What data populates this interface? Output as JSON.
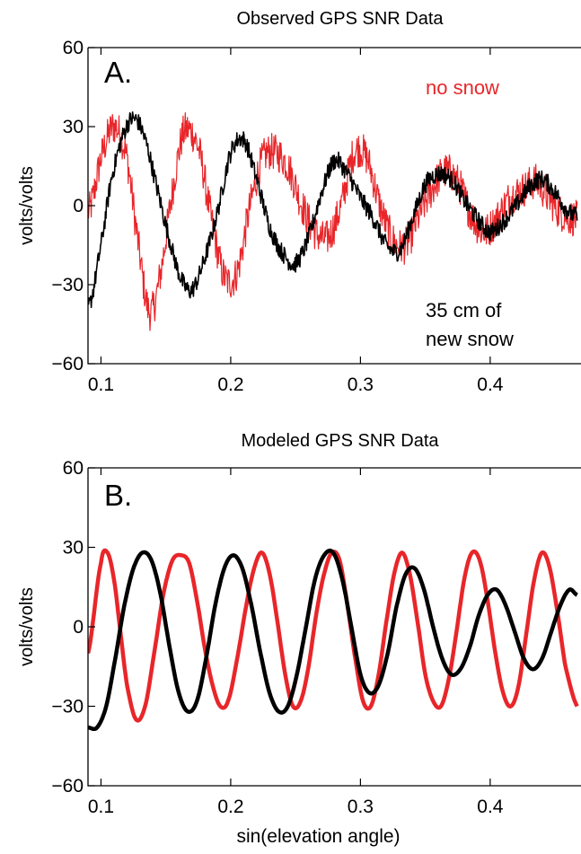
{
  "chart_data": [
    {
      "type": "line",
      "title": "Observed GPS SNR Data",
      "panel_label": "A.",
      "xlabel": "",
      "ylabel": "volts/volts",
      "xlim": [
        0.09,
        0.47
      ],
      "ylim": [
        -60,
        60
      ],
      "xticks": [
        0.1,
        0.2,
        0.3,
        0.4
      ],
      "xtick_labels": [
        "0.1",
        "0.2",
        "0.3",
        "0.4"
      ],
      "yticks": [
        60,
        30,
        0,
        -30,
        -60
      ],
      "ytick_labels": [
        "60",
        "30",
        "0",
        "−30",
        "−60"
      ],
      "annotations": [
        {
          "text": "no snow",
          "color": "#e8262a"
        },
        {
          "text": "35 cm of",
          "color": "#000000"
        },
        {
          "text": "new snow",
          "color": "#000000"
        }
      ],
      "series": [
        {
          "color": "#e8262a",
          "x": [
            0.091,
            0.1,
            0.11,
            0.12,
            0.128,
            0.137,
            0.145,
            0.155,
            0.164,
            0.175,
            0.185,
            0.195,
            0.205,
            0.215,
            0.225,
            0.235,
            0.245,
            0.255,
            0.265,
            0.275,
            0.285,
            0.295,
            0.305,
            0.315,
            0.325,
            0.335,
            0.345,
            0.355,
            0.365,
            0.375,
            0.385,
            0.395,
            0.405,
            0.415,
            0.425,
            0.435,
            0.445,
            0.455,
            0.467
          ],
          "y": [
            -2,
            18,
            30,
            18,
            -12,
            -40,
            -28,
            5,
            28,
            22,
            -5,
            -27,
            -25,
            0,
            18,
            20,
            14,
            0,
            -10,
            -12,
            0,
            20,
            18,
            0,
            -13,
            -15,
            -4,
            6,
            13,
            9,
            -3,
            -10,
            -5,
            3,
            6,
            9,
            3,
            -3,
            -5
          ],
          "noise": 7
        },
        {
          "color": "#000000",
          "x": [
            0.091,
            0.1,
            0.108,
            0.118,
            0.126,
            0.134,
            0.144,
            0.154,
            0.162,
            0.17,
            0.18,
            0.19,
            0.2,
            0.21,
            0.22,
            0.23,
            0.24,
            0.25,
            0.26,
            0.27,
            0.28,
            0.29,
            0.3,
            0.31,
            0.32,
            0.33,
            0.34,
            0.35,
            0.36,
            0.37,
            0.38,
            0.39,
            0.4,
            0.41,
            0.42,
            0.43,
            0.44,
            0.45,
            0.46,
            0.467
          ],
          "y": [
            -38,
            -15,
            10,
            28,
            33,
            25,
            5,
            -15,
            -28,
            -32,
            -20,
            -2,
            20,
            25,
            10,
            -8,
            -18,
            -22,
            -12,
            5,
            17,
            12,
            3,
            -5,
            -15,
            -17,
            -5,
            8,
            12,
            10,
            2,
            -5,
            -10,
            -6,
            0,
            7,
            10,
            5,
            -2,
            -4
          ],
          "noise": 3.5
        }
      ]
    },
    {
      "type": "line",
      "title": "Modeled GPS SNR Data",
      "panel_label": "B.",
      "xlabel": "sin(elevation angle)",
      "ylabel": "volts/volts",
      "xlim": [
        0.09,
        0.47
      ],
      "ylim": [
        -60,
        60
      ],
      "xticks": [
        0.1,
        0.2,
        0.3,
        0.4
      ],
      "xtick_labels": [
        "0.1",
        "0.2",
        "0.3",
        "0.4"
      ],
      "yticks": [
        60,
        30,
        0,
        -30,
        -60
      ],
      "ytick_labels": [
        "60",
        "30",
        "0",
        "−30",
        "−60"
      ],
      "series": [
        {
          "color": "#e8262a",
          "x": [
            0.09,
            0.1,
            0.105,
            0.11,
            0.115,
            0.12,
            0.127,
            0.134,
            0.141,
            0.148,
            0.155,
            0.162,
            0.168,
            0.174,
            0.18,
            0.186,
            0.192,
            0.198,
            0.205,
            0.212,
            0.218,
            0.224,
            0.23,
            0.236,
            0.242,
            0.248,
            0.254,
            0.26,
            0.266,
            0.272,
            0.278,
            0.284,
            0.29,
            0.296,
            0.302,
            0.308,
            0.314,
            0.32,
            0.326,
            0.332,
            0.338,
            0.344,
            0.35,
            0.356,
            0.362,
            0.368,
            0.374,
            0.38,
            0.386,
            0.392,
            0.398,
            0.404,
            0.41,
            0.416,
            0.422,
            0.428,
            0.434,
            0.44,
            0.446,
            0.452,
            0.458,
            0.467
          ],
          "y": [
            -10,
            24,
            28,
            18,
            -2,
            -22,
            -35,
            -30,
            -10,
            12,
            25,
            27,
            24,
            10,
            -8,
            -22,
            -30,
            -28,
            -12,
            8,
            22,
            28,
            20,
            2,
            -18,
            -30,
            -28,
            -15,
            5,
            20,
            28,
            25,
            8,
            -12,
            -28,
            -30,
            -18,
            2,
            20,
            28,
            20,
            2,
            -18,
            -28,
            -30,
            -20,
            -2,
            18,
            28,
            25,
            10,
            -10,
            -25,
            -30,
            -22,
            -2,
            18,
            28,
            22,
            5,
            -15,
            -30
          ],
          "noise": 0
        },
        {
          "color": "#000000",
          "x": [
            0.09,
            0.097,
            0.104,
            0.111,
            0.118,
            0.125,
            0.132,
            0.139,
            0.146,
            0.153,
            0.16,
            0.167,
            0.174,
            0.181,
            0.188,
            0.195,
            0.202,
            0.209,
            0.216,
            0.223,
            0.23,
            0.237,
            0.244,
            0.251,
            0.258,
            0.265,
            0.272,
            0.279,
            0.286,
            0.293,
            0.3,
            0.307,
            0.314,
            0.321,
            0.328,
            0.335,
            0.342,
            0.349,
            0.356,
            0.363,
            0.37,
            0.377,
            0.384,
            0.391,
            0.398,
            0.405,
            0.412,
            0.419,
            0.426,
            0.433,
            0.44,
            0.447,
            0.454,
            0.461,
            0.467
          ],
          "y": [
            -38,
            -38,
            -30,
            -12,
            8,
            22,
            28,
            25,
            12,
            -8,
            -25,
            -32,
            -28,
            -12,
            8,
            22,
            27,
            22,
            8,
            -10,
            -25,
            -32,
            -30,
            -18,
            0,
            18,
            27,
            28,
            18,
            0,
            -18,
            -25,
            -22,
            -10,
            8,
            20,
            22,
            14,
            0,
            -12,
            -18,
            -16,
            -8,
            4,
            12,
            14,
            8,
            -2,
            -12,
            -16,
            -12,
            -2,
            8,
            14,
            12
          ],
          "noise": 0
        }
      ]
    }
  ]
}
